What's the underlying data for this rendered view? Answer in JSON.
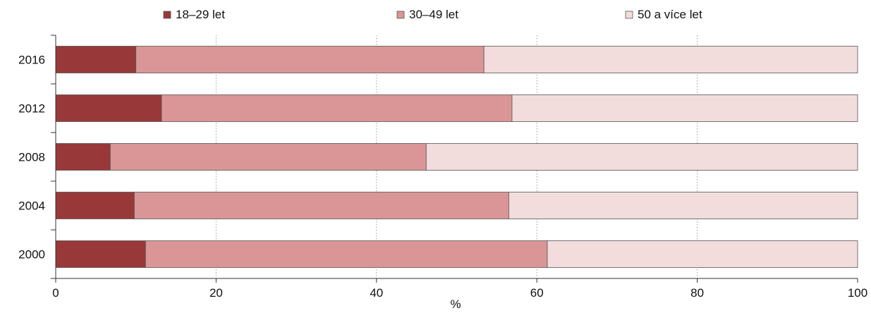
{
  "chart_data": {
    "type": "bar",
    "orientation": "horizontal",
    "stacked": true,
    "categories": [
      "2016",
      "2012",
      "2008",
      "2004",
      "2000"
    ],
    "series": [
      {
        "name": "18–29 let",
        "color": "#993838",
        "values": [
          10.0,
          13.2,
          6.8,
          9.8,
          11.2
        ]
      },
      {
        "name": "30–49 let",
        "color": "#da9696",
        "values": [
          43.4,
          43.7,
          39.4,
          46.7,
          50.1
        ]
      },
      {
        "name": "50 a více let",
        "color": "#f2dcdc",
        "values": [
          46.6,
          43.1,
          53.8,
          43.5,
          38.7
        ]
      }
    ],
    "xlabel": "%",
    "xlim": [
      0,
      100
    ],
    "xticks": [
      0,
      20,
      40,
      60,
      80,
      100
    ],
    "grid": "vertical dotted",
    "legend": "top"
  }
}
